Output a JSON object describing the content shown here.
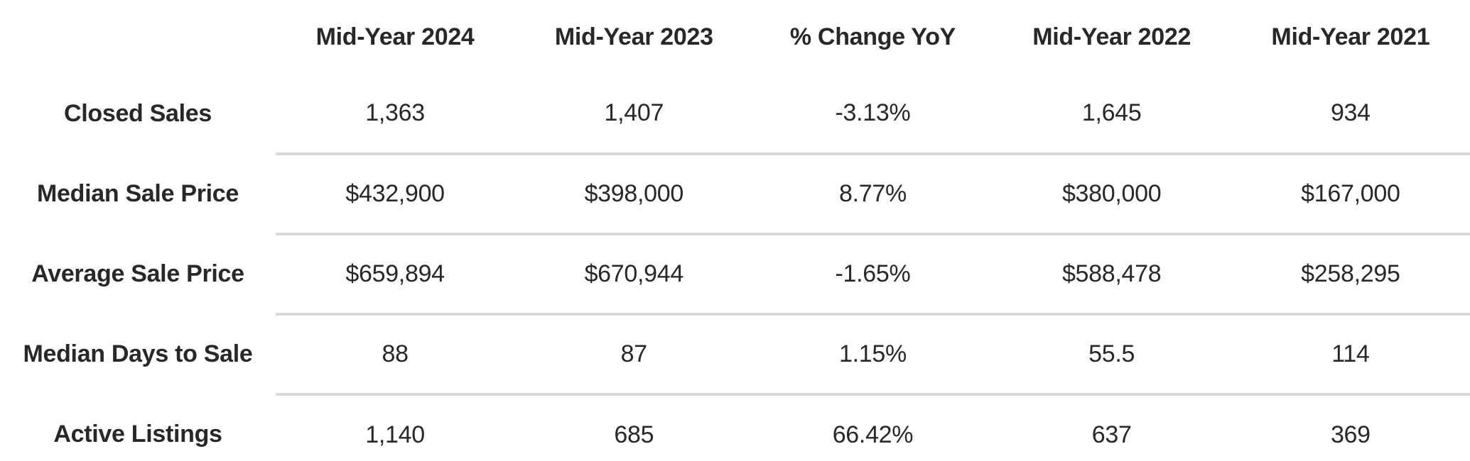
{
  "colors": {
    "text": "#282828",
    "divider": "#d9d9d9",
    "background": "#ffffff"
  },
  "chart_data": {
    "type": "table",
    "title": "",
    "corner_label": "",
    "columns": [
      "Mid-Year 2024",
      "Mid-Year 2023",
      "% Change YoY",
      "Mid-Year 2022",
      "Mid-Year 2021"
    ],
    "rows": [
      {
        "label": "Closed Sales",
        "values": [
          "1,363",
          "1,407",
          "-3.13%",
          "1,645",
          "934"
        ]
      },
      {
        "label": "Median Sale Price",
        "values": [
          "$432,900",
          "$398,000",
          "8.77%",
          "$380,000",
          "$167,000"
        ]
      },
      {
        "label": "Average Sale Price",
        "values": [
          "$659,894",
          "$670,944",
          "-1.65%",
          "$588,478",
          "$258,295"
        ]
      },
      {
        "label": "Median Days to Sale",
        "values": [
          "88",
          "87",
          "1.15%",
          "55.5",
          "114"
        ]
      },
      {
        "label": "Active Listings",
        "values": [
          "1,140",
          "685",
          "66.42%",
          "637",
          "369"
        ]
      }
    ]
  }
}
